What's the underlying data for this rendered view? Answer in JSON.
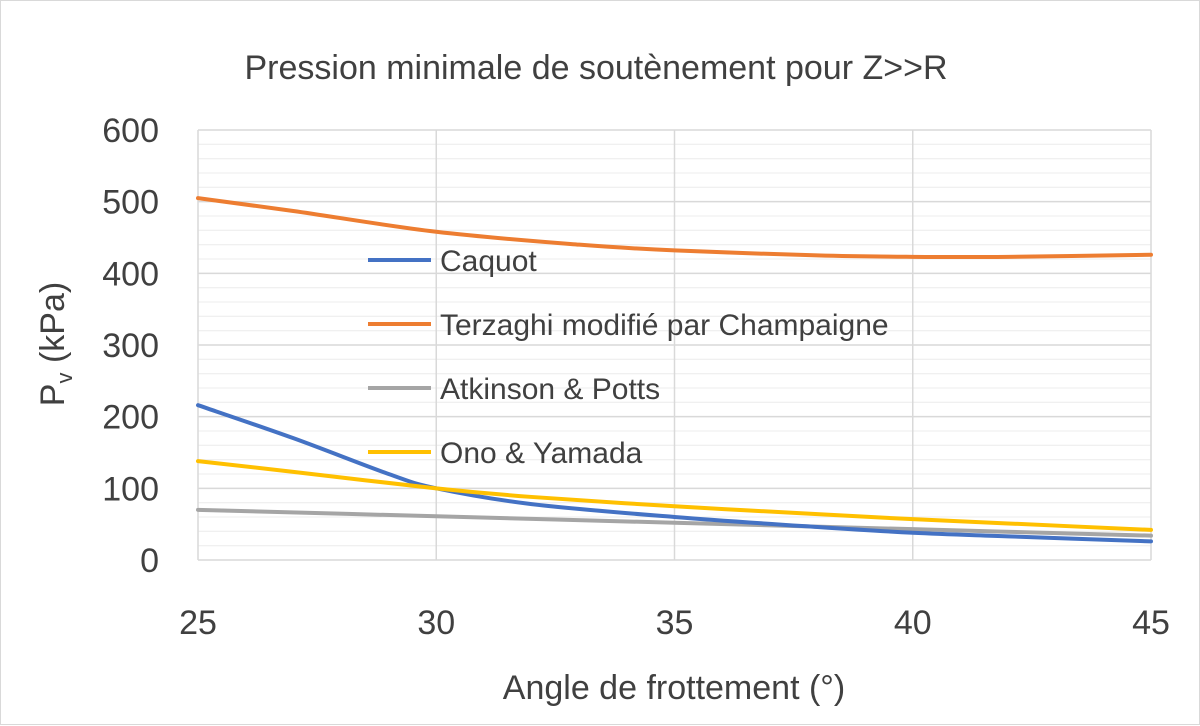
{
  "chart_data": {
    "type": "line",
    "title": "Pression minimale de soutènement pour Z>>R",
    "xlabel": "Angle de frottement (°)",
    "ylabel": {
      "main": "P",
      "sub": "v",
      "rest": " (kPa)"
    },
    "xlim": [
      25,
      45
    ],
    "ylim": [
      0,
      600
    ],
    "xticks": [
      25,
      30,
      35,
      40,
      45
    ],
    "yticks": [
      0,
      100,
      200,
      300,
      400,
      500,
      600
    ],
    "grid": {
      "major": true,
      "minor_y_step": 20
    },
    "legend_position": "center-left inside plot",
    "series": [
      {
        "name": "Caquot",
        "color": "#4472c4",
        "x": [
          25,
          27,
          29,
          30,
          32,
          35,
          38,
          40,
          42,
          45
        ],
        "y": [
          216,
          170,
          120,
          100,
          78,
          60,
          46,
          38,
          33,
          26
        ]
      },
      {
        "name": "Terzaghi modifié par Champaigne",
        "color": "#ed7d31",
        "x": [
          25,
          27,
          30,
          33,
          35,
          38,
          40,
          42,
          45
        ],
        "y": [
          505,
          487,
          458,
          440,
          432,
          425,
          423,
          423,
          426
        ]
      },
      {
        "name": "Atkinson & Potts",
        "color": "#a5a5a5",
        "x": [
          25,
          30,
          35,
          40,
          45
        ],
        "y": [
          70,
          61,
          52,
          43,
          34
        ]
      },
      {
        "name": "Ono & Yamada",
        "color": "#ffc000",
        "x": [
          25,
          27,
          30,
          32,
          35,
          38,
          40,
          42,
          45
        ],
        "y": [
          138,
          123,
          100,
          88,
          75,
          64,
          57,
          51,
          42
        ]
      }
    ]
  }
}
